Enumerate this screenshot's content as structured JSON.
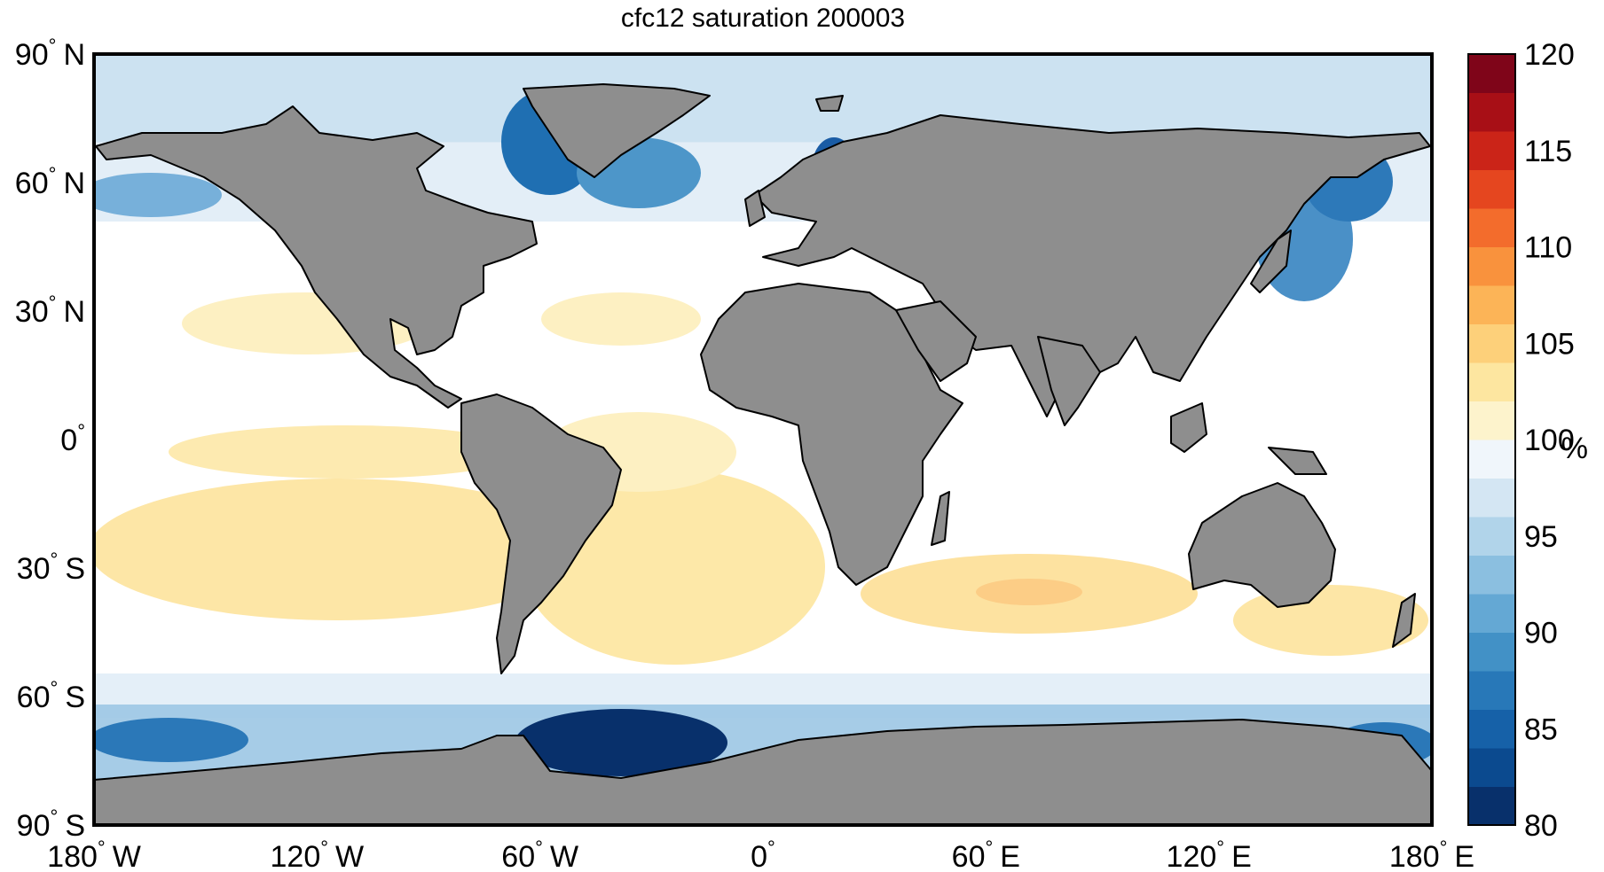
{
  "title": "cfc12 saturation 200003",
  "y_ticks": [
    {
      "value": 90,
      "label": "90",
      "hemi": "N"
    },
    {
      "value": 60,
      "label": "60",
      "hemi": "N"
    },
    {
      "value": 30,
      "label": "30",
      "hemi": "N"
    },
    {
      "value": 0,
      "label": "0",
      "hemi": ""
    },
    {
      "value": -30,
      "label": "30",
      "hemi": "S"
    },
    {
      "value": -60,
      "label": "60",
      "hemi": "S"
    },
    {
      "value": -90,
      "label": "90",
      "hemi": "S"
    }
  ],
  "x_ticks": [
    {
      "value": -180,
      "label": "180",
      "hemi": "W"
    },
    {
      "value": -120,
      "label": "120",
      "hemi": "W"
    },
    {
      "value": -60,
      "label": "60",
      "hemi": "W"
    },
    {
      "value": 0,
      "label": "0",
      "hemi": ""
    },
    {
      "value": 60,
      "label": "60",
      "hemi": "E"
    },
    {
      "value": 120,
      "label": "120",
      "hemi": "E"
    },
    {
      "value": 180,
      "label": "180",
      "hemi": "E"
    }
  ],
  "degree_symbol": "°",
  "colorbar": {
    "unit": "%",
    "range": [
      80,
      120
    ],
    "ticks": [
      "120",
      "115",
      "110",
      "105",
      "100",
      "95",
      "90",
      "85",
      "80"
    ],
    "colors": [
      "#08306b",
      "#0b4a8f",
      "#1661a8",
      "#2878b8",
      "#4291c6",
      "#64a8d4",
      "#8bbfe0",
      "#b1d4ea",
      "#d4e6f3",
      "#f0f6fb",
      "#fdf3cc",
      "#fde6a0",
      "#fdd07a",
      "#fcb457",
      "#f9923d",
      "#f36c2c",
      "#e5461f",
      "#cb2418",
      "#a80f16",
      "#7f0519"
    ]
  },
  "colors": {
    "land": "#8e8e8e",
    "ocean_base": "#ffffff",
    "coast": "#000000"
  }
}
